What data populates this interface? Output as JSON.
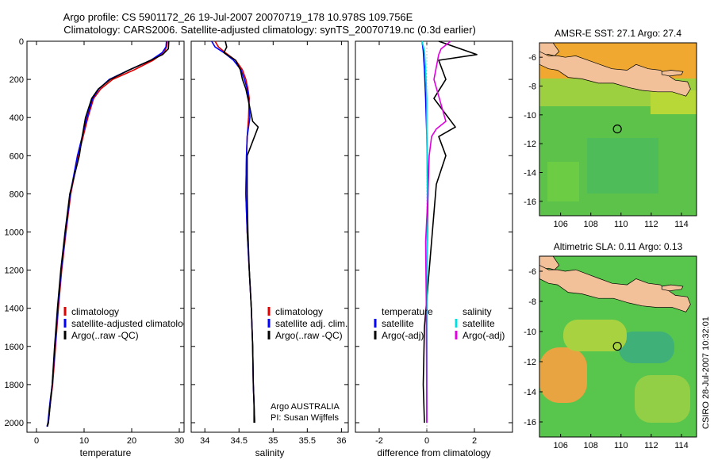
{
  "header": {
    "line1": "Argo profile: CS 5901172_26 19-Jul-2007 20070719_178 10.978S 109.756E",
    "line2": "Climatology: CARS2006. Satellite-adjusted climatology: synTS_20070719.nc (0.3d earlier)"
  },
  "footer_note": "CSIRO 28-Jul-2007 10:32:01",
  "chart_data": [
    {
      "type": "line",
      "xlabel": "temperature",
      "xlim": [
        -2,
        31
      ],
      "ylim": [
        2050,
        0
      ],
      "xticks": [
        0,
        10,
        20,
        30
      ],
      "yticks": [
        0,
        200,
        400,
        600,
        800,
        1000,
        1200,
        1400,
        1600,
        1800,
        2000
      ],
      "legend": [
        {
          "label": "climatology",
          "color": "#e00000"
        },
        {
          "label": "satellite-adjusted climatology",
          "color": "#0000ff"
        },
        {
          "label": "Argo(..raw -QC)",
          "color": "#000000"
        }
      ],
      "series": [
        {
          "name": "climatology",
          "color": "#e00000",
          "x": [
            27.5,
            27.3,
            26.8,
            24.5,
            20.5,
            16.0,
            13.5,
            12.0,
            10.8,
            9.8,
            8.8,
            7.2,
            6.2,
            5.3,
            4.6,
            4.0,
            3.4,
            2.9,
            2.5,
            2.2
          ],
          "y": [
            0,
            30,
            60,
            100,
            150,
            200,
            250,
            300,
            400,
            500,
            600,
            800,
            1000,
            1200,
            1400,
            1600,
            1800,
            1900,
            2000,
            2020
          ]
        },
        {
          "name": "satellite-adjusted climatology",
          "color": "#0000ff",
          "x": [
            27.3,
            27.2,
            26.4,
            24.0,
            19.5,
            15.3,
            13.1,
            11.8,
            10.6,
            9.6,
            8.6,
            7.1,
            6.1,
            5.2,
            4.5,
            3.9,
            3.3,
            2.8,
            2.4,
            2.2
          ],
          "y": [
            0,
            30,
            60,
            100,
            150,
            200,
            250,
            300,
            400,
            500,
            600,
            800,
            1000,
            1200,
            1400,
            1600,
            1800,
            1900,
            2000,
            2020
          ]
        },
        {
          "name": "Argo(..raw -QC)",
          "color": "#000000",
          "x": [
            27.8,
            27.7,
            26.5,
            24.0,
            19.5,
            15.5,
            13.0,
            11.6,
            10.3,
            9.6,
            9.0,
            7.0,
            6.0,
            5.1,
            4.4,
            3.8,
            3.3,
            2.9,
            2.5,
            2.3
          ],
          "y": [
            0,
            40,
            70,
            100,
            150,
            200,
            250,
            300,
            400,
            500,
            600,
            800,
            1000,
            1200,
            1400,
            1600,
            1800,
            1900,
            2000,
            2020
          ]
        }
      ]
    },
    {
      "type": "line",
      "xlabel": "salinity",
      "xlim": [
        33.8,
        36.1
      ],
      "ylim": [
        2050,
        0
      ],
      "xticks": [
        34,
        34.5,
        35,
        35.5,
        36
      ],
      "legend": [
        {
          "label": "climatology",
          "color": "#e00000"
        },
        {
          "label": "satellite adj. clim.",
          "color": "#0000ff"
        },
        {
          "label": "Argo(..raw -QC)",
          "color": "#000000"
        }
      ],
      "annotation": [
        "Argo AUSTRALIA",
        "PI: Susan Wijffels"
      ],
      "series": [
        {
          "name": "climatology",
          "color": "#e00000",
          "x": [
            34.15,
            34.2,
            34.3,
            34.45,
            34.55,
            34.6,
            34.63,
            34.65,
            34.64,
            34.62,
            34.61,
            34.6,
            34.62,
            34.65,
            34.68,
            34.7,
            34.71,
            34.72,
            34.73
          ],
          "y": [
            0,
            30,
            60,
            100,
            150,
            200,
            250,
            300,
            400,
            500,
            600,
            800,
            1000,
            1200,
            1400,
            1600,
            1800,
            1900,
            2000
          ]
        },
        {
          "name": "satellite adj. clim.",
          "color": "#0000ff",
          "x": [
            34.1,
            34.15,
            34.28,
            34.42,
            34.53,
            34.58,
            34.62,
            34.64,
            34.66,
            34.62,
            34.61,
            34.6,
            34.62,
            34.65,
            34.68,
            34.7,
            34.71,
            34.72,
            34.73
          ],
          "y": [
            0,
            30,
            60,
            100,
            150,
            200,
            250,
            300,
            400,
            500,
            600,
            800,
            1000,
            1200,
            1400,
            1600,
            1800,
            1900,
            2000
          ]
        },
        {
          "name": "Argo(..raw -QC)",
          "color": "#000000",
          "x": [
            34.3,
            34.32,
            34.28,
            34.45,
            34.52,
            34.55,
            34.6,
            34.63,
            34.7,
            34.78,
            34.62,
            34.62,
            34.63,
            34.65,
            34.68,
            34.7,
            34.71,
            34.72,
            34.72
          ],
          "y": [
            0,
            30,
            60,
            100,
            150,
            200,
            250,
            300,
            420,
            450,
            600,
            800,
            1000,
            1200,
            1400,
            1600,
            1800,
            1900,
            2000
          ]
        }
      ]
    },
    {
      "type": "line",
      "xlabel": "difference from climatology",
      "xlim": [
        -3,
        3.6
      ],
      "ylim": [
        2050,
        0
      ],
      "xticks": [
        -2,
        0,
        2
      ],
      "legend_left": [
        {
          "label": "temperature",
          "color": ""
        },
        {
          "label": "satellite",
          "color": "#0000ff"
        },
        {
          "label": "Argo(-adj)",
          "color": "#000000"
        }
      ],
      "legend_right": [
        {
          "label": "salinity",
          "color": ""
        },
        {
          "label": "satellite",
          "color": "#00e0e0"
        },
        {
          "label": "Argo(-adj)",
          "color": "#e000e0"
        }
      ],
      "series": [
        {
          "name": "temperature satellite",
          "color": "#0000ff",
          "x": [
            -0.2,
            -0.15,
            -0.1,
            -0.05,
            0,
            0.05,
            0,
            0
          ],
          "y": [
            0,
            50,
            150,
            300,
            500,
            800,
            1200,
            2000
          ]
        },
        {
          "name": "temperature Argo(-adj)",
          "color": "#000000",
          "x": [
            0.5,
            2.1,
            0.5,
            0.8,
            0.3,
            1.2,
            0.5,
            0.8,
            0.4,
            0.3,
            0.1,
            -0.1,
            -0.15,
            -0.1
          ],
          "y": [
            0,
            70,
            100,
            200,
            300,
            450,
            500,
            600,
            750,
            900,
            1200,
            1500,
            1800,
            2000
          ]
        },
        {
          "name": "salinity satellite",
          "color": "#00e0e0",
          "x": [
            -0.2,
            -0.1,
            -0.05,
            0,
            0,
            0.02,
            0,
            0
          ],
          "y": [
            0,
            50,
            150,
            300,
            500,
            800,
            1200,
            2000
          ]
        },
        {
          "name": "salinity Argo(-adj)",
          "color": "#e000e0",
          "x": [
            1.0,
            0.6,
            0.5,
            0.3,
            0.8,
            0.4,
            0.2,
            0.1,
            0.05,
            -0.05,
            -0.02,
            0
          ],
          "y": [
            0,
            40,
            70,
            200,
            420,
            460,
            500,
            600,
            800,
            1050,
            1400,
            2000
          ]
        }
      ]
    }
  ],
  "maps": [
    {
      "title": "AMSR-E SST: 27.1 Argo: 27.4",
      "xlim": [
        104.6,
        115
      ],
      "ylim": [
        -17,
        -5
      ],
      "xticks": [
        106,
        108,
        110,
        112,
        114
      ],
      "yticks": [
        -6,
        -8,
        -10,
        -12,
        -14,
        -16
      ],
      "argo_position": [
        109.756,
        -10.978
      ]
    },
    {
      "title": "Altimetric SLA: 0.11 Argo: 0.13",
      "xlim": [
        104.6,
        115
      ],
      "ylim": [
        -17,
        -5
      ],
      "xticks": [
        106,
        108,
        110,
        112,
        114
      ],
      "yticks": [
        -6,
        -8,
        -10,
        -12,
        -14,
        -16
      ],
      "argo_position": [
        109.756,
        -10.978
      ]
    }
  ]
}
